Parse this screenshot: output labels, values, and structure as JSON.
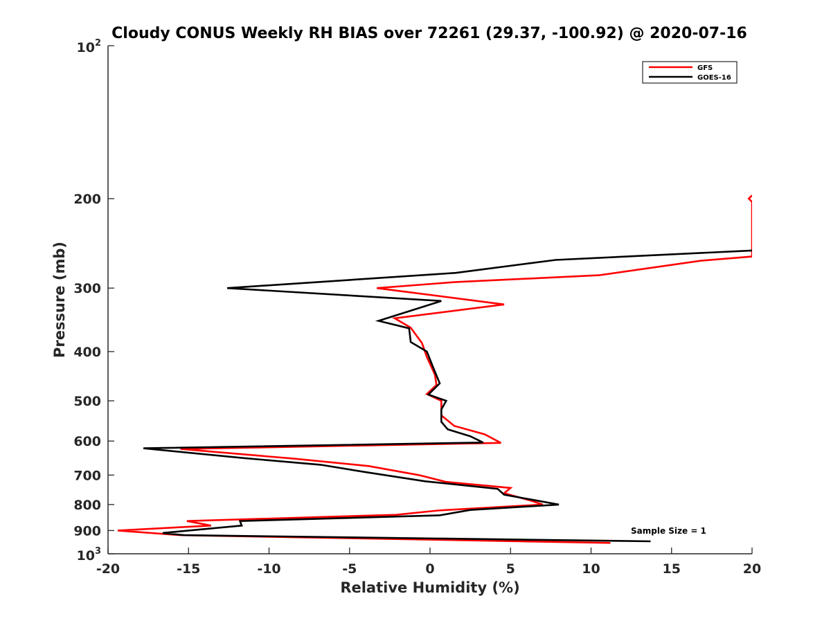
{
  "chart_data": {
    "type": "line",
    "title": "Cloudy CONUS Weekly RH BIAS over 72261 (29.37, -100.92) @ 2020-07-16",
    "xlabel": "Relative Humidity (%)",
    "ylabel": "Pressure (mb)",
    "xlim": [
      -20,
      20
    ],
    "ylim": [
      100,
      1000
    ],
    "yscale": "log",
    "y_reversed": true,
    "xticks": [
      -20,
      -15,
      -10,
      -5,
      0,
      5,
      10,
      15,
      20
    ],
    "yticks": [
      {
        "value": 100,
        "base": "10",
        "exp": "2"
      },
      {
        "value": 200,
        "label": "200"
      },
      {
        "value": 300,
        "label": "300"
      },
      {
        "value": 400,
        "label": "400"
      },
      {
        "value": 500,
        "label": "500"
      },
      {
        "value": 600,
        "label": "600"
      },
      {
        "value": 700,
        "label": "700"
      },
      {
        "value": 800,
        "label": "800"
      },
      {
        "value": 900,
        "label": "900"
      },
      {
        "value": 1000,
        "base": "10",
        "exp": "3"
      }
    ],
    "legend_position": "top-right",
    "annotation": "Sample Size = 1",
    "series": [
      {
        "name": "GFS",
        "color": "#ff0000",
        "x": [
          20,
          19.8,
          20,
          20,
          16.8,
          10.5,
          1.5,
          -3.3,
          4.6,
          -2.2,
          -1.2,
          -0.5,
          -0.2,
          0.3,
          0.4,
          -0.2,
          0.7,
          0.7,
          1.5,
          3.4,
          4.4,
          -15.5,
          -8.4,
          -3.8,
          -0.7,
          1.0,
          5.0,
          4.6,
          6.2,
          7.0,
          0.5,
          -2.1,
          -15.1,
          -13.6,
          -19.4,
          -15.5,
          11.2
        ],
        "y": [
          197,
          200,
          203,
          260,
          265,
          283,
          292,
          300,
          323,
          344,
          359,
          385,
          410,
          444,
          465,
          485,
          500,
          534,
          560,
          582,
          605,
          622,
          650,
          672,
          700,
          722,
          742,
          760,
          785,
          800,
          822,
          838,
          862,
          880,
          900,
          919,
          952
        ]
      },
      {
        "name": "GOES-16",
        "color": "#000000",
        "x": [
          20,
          7.8,
          1.6,
          -12.6,
          0.7,
          -3.2,
          -1.3,
          -1.2,
          -0.2,
          0.2,
          0.6,
          -0.1,
          1.0,
          0.7,
          0.7,
          1.1,
          2.5,
          3.3,
          -17.8,
          -11.6,
          -6.8,
          -4.1,
          -0.3,
          4.2,
          4.6,
          8.0,
          2.5,
          0.6,
          -11.8,
          -11.7,
          -16.6,
          -15.3,
          13.7
        ],
        "y": [
          253,
          264,
          280,
          300,
          318,
          348,
          360,
          383,
          400,
          430,
          462,
          486,
          500,
          520,
          550,
          569,
          587,
          604,
          620,
          648,
          668,
          690,
          720,
          745,
          765,
          800,
          820,
          840,
          862,
          880,
          910,
          919,
          945
        ]
      }
    ]
  }
}
